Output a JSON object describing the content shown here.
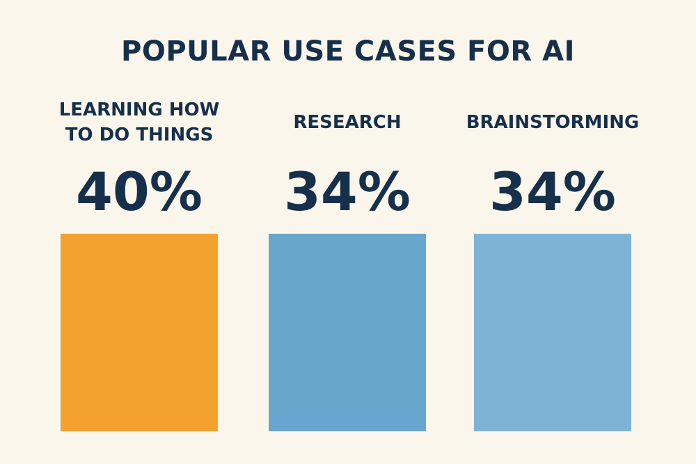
{
  "title": "POPULAR USE CASES FOR AI",
  "colors": {
    "background": "#FBF6EC",
    "text": "#16304B",
    "bar_1": "#F5A130",
    "bar_2": "#68A6CE",
    "bar_3": "#7FB3D6"
  },
  "chart_data": {
    "type": "bar",
    "title": "POPULAR USE CASES FOR AI",
    "categories": [
      "LEARNING HOW TO DO THINGS",
      "RESEARCH",
      "BRAINSTORMING"
    ],
    "category_lines": [
      [
        "LEARNING HOW",
        "TO DO THINGS"
      ],
      [
        "RESEARCH"
      ],
      [
        "BRAINSTORMING"
      ]
    ],
    "values": [
      40,
      34,
      34
    ],
    "value_labels": [
      "40%",
      "34%",
      "34%"
    ],
    "unit": "%",
    "colors": [
      "#F5A130",
      "#68A6CE",
      "#7FB3D6"
    ],
    "xlabel": "",
    "ylabel": "",
    "grid": false,
    "legend": "none"
  }
}
